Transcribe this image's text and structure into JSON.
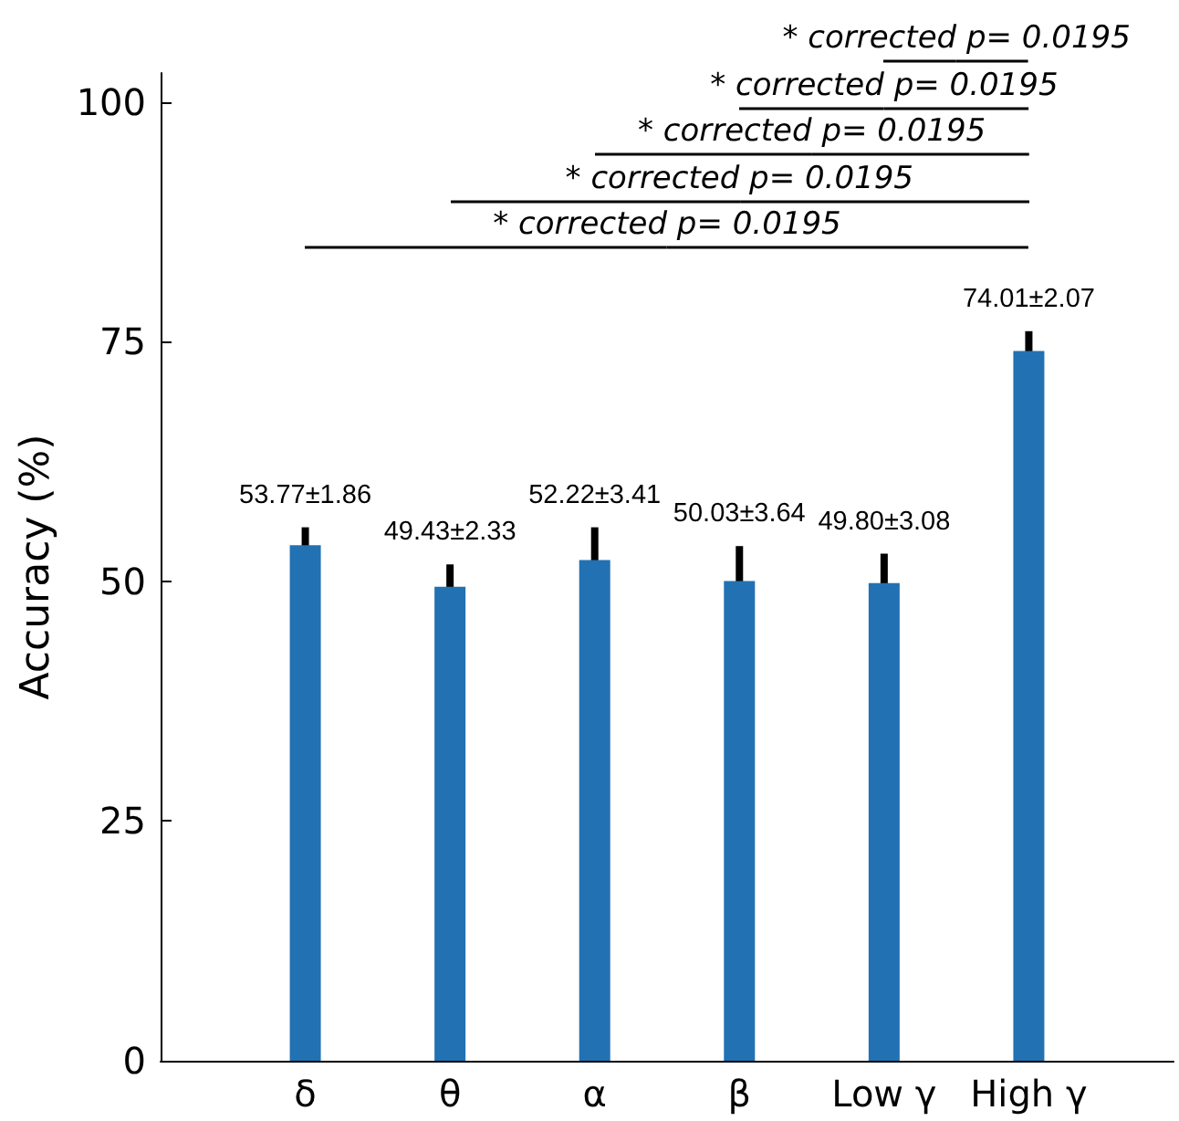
{
  "chart_data": {
    "type": "bar",
    "ylabel": "Accuracy (%)",
    "categories": [
      "δ",
      "θ",
      "α",
      "β",
      "Low γ",
      "High γ"
    ],
    "values": [
      53.77,
      49.43,
      52.22,
      50.03,
      49.8,
      74.01
    ],
    "errors": [
      1.86,
      2.33,
      3.41,
      3.64,
      3.08,
      2.07
    ],
    "value_labels": [
      "53.77±1.86",
      "49.43±2.33",
      "52.22±3.41",
      "50.03±3.64",
      "49.80±3.08",
      "74.01±2.07"
    ],
    "color": "#2271b3",
    "ylim": [
      0,
      103
    ],
    "yticks": [
      0,
      25,
      50,
      75,
      100
    ],
    "grid": false,
    "annotations": [
      "* corrected p= 0.0195",
      "* corrected p= 0.0195",
      "* corrected p= 0.0195",
      "* corrected p= 0.0195",
      "* corrected p= 0.0195"
    ]
  }
}
